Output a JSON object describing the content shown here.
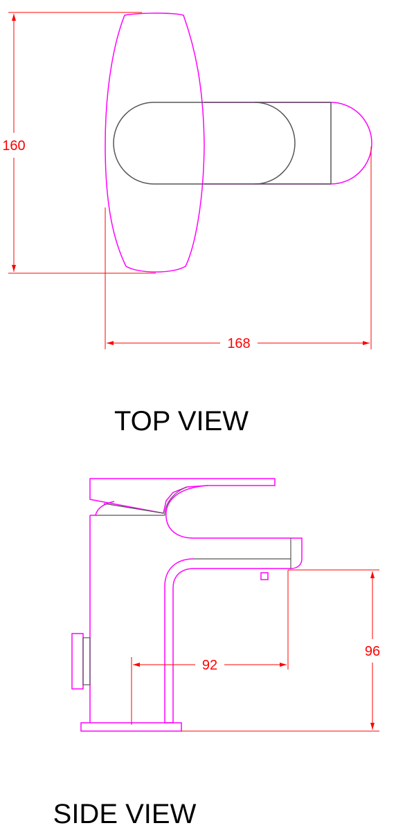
{
  "top_view": {
    "title": "TOP VIEW",
    "dim_height": "160",
    "dim_width": "168"
  },
  "side_view": {
    "title": "SIDE VIEW",
    "dim_reach": "92",
    "dim_spout_height": "96"
  },
  "colors": {
    "outline": "#ff00ff",
    "edge": "#555555",
    "dimension": "#ff0000",
    "text": "#000000"
  }
}
